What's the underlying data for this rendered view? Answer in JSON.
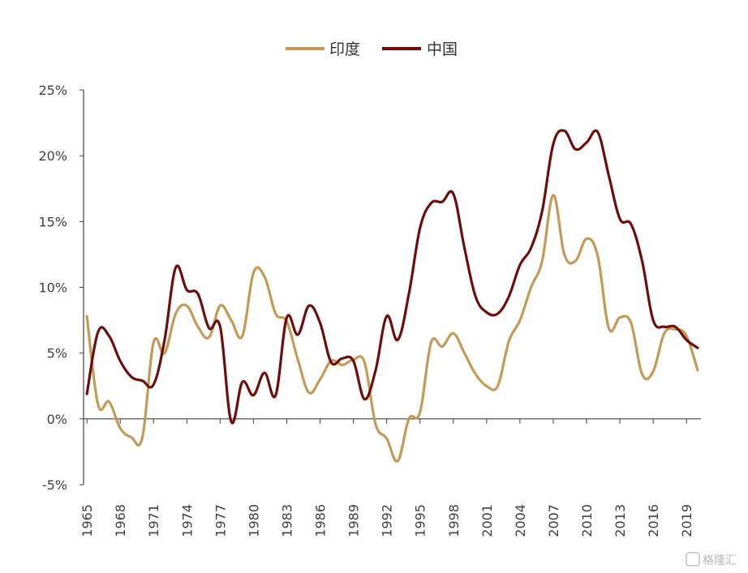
{
  "chart_data": {
    "type": "line",
    "title": "",
    "xlabel": "",
    "ylabel": "",
    "x": [
      1965,
      1966,
      1967,
      1968,
      1969,
      1970,
      1971,
      1972,
      1973,
      1974,
      1975,
      1976,
      1977,
      1978,
      1979,
      1980,
      1981,
      1982,
      1983,
      1984,
      1985,
      1986,
      1987,
      1988,
      1989,
      1990,
      1991,
      1992,
      1993,
      1994,
      1995,
      1996,
      1997,
      1998,
      1999,
      2000,
      2001,
      2002,
      2003,
      2004,
      2005,
      2006,
      2007,
      2008,
      2009,
      2010,
      2011,
      2012,
      2013,
      2014,
      2015,
      2016,
      2017,
      2018,
      2019,
      2020
    ],
    "x_tick_labels": [
      "1965",
      "1968",
      "1971",
      "1974",
      "1977",
      "1980",
      "1983",
      "1986",
      "1989",
      "1992",
      "1995",
      "1998",
      "2001",
      "2004",
      "2007",
      "2010",
      "2013",
      "2016",
      "2019"
    ],
    "y_tick_labels": [
      "25%",
      "20%",
      "15%",
      "10%",
      "5%",
      "0%",
      "-5%"
    ],
    "ylim": [
      -5,
      25
    ],
    "y_unit": "%",
    "legend_position": "top-center",
    "series": [
      {
        "name": "印度",
        "color": "#C49A56",
        "values": [
          7.8,
          1.1,
          1.3,
          -0.7,
          -1.4,
          -1.4,
          5.8,
          5.0,
          8.0,
          8.6,
          7.0,
          6.2,
          8.6,
          7.5,
          6.3,
          11.1,
          10.8,
          8.0,
          7.4,
          4.5,
          2.0,
          3.0,
          4.4,
          4.1,
          4.5,
          4.3,
          -0.4,
          -1.5,
          -3.2,
          0,
          0.5,
          5.8,
          5.5,
          6.5,
          5.0,
          3.4,
          2.5,
          2.5,
          5.9,
          7.5,
          10.0,
          12.0,
          17.0,
          12.5,
          12.0,
          13.7,
          12.4,
          6.9,
          7.7,
          7.3,
          3.4,
          3.6,
          6.5,
          6.8,
          6.3,
          3.7
        ]
      },
      {
        "name": "中国",
        "color": "#6E0E0A",
        "values": [
          1.9,
          6.6,
          6.3,
          4.4,
          3.2,
          2.9,
          2.6,
          6.0,
          11.5,
          9.8,
          9.5,
          6.9,
          7.0,
          -0.2,
          2.8,
          1.8,
          3.5,
          1.8,
          7.7,
          6.4,
          8.6,
          7.3,
          4.3,
          4.6,
          4.4,
          1.5,
          3.7,
          7.8,
          6.0,
          9.5,
          14.5,
          16.4,
          16.5,
          17.1,
          13.0,
          9.3,
          8.1,
          8.0,
          9.3,
          11.7,
          13.0,
          15.8,
          20.9,
          21.9,
          20.5,
          21.0,
          21.8,
          18.5,
          15.2,
          14.8,
          12.0,
          7.5,
          7.0,
          7.0,
          6.0,
          5.4
        ]
      }
    ]
  },
  "legend": {
    "items": [
      {
        "label": "印度",
        "color": "#C49A56"
      },
      {
        "label": "中国",
        "color": "#6E0E0A"
      }
    ]
  },
  "watermark": {
    "text": "格隆汇"
  }
}
